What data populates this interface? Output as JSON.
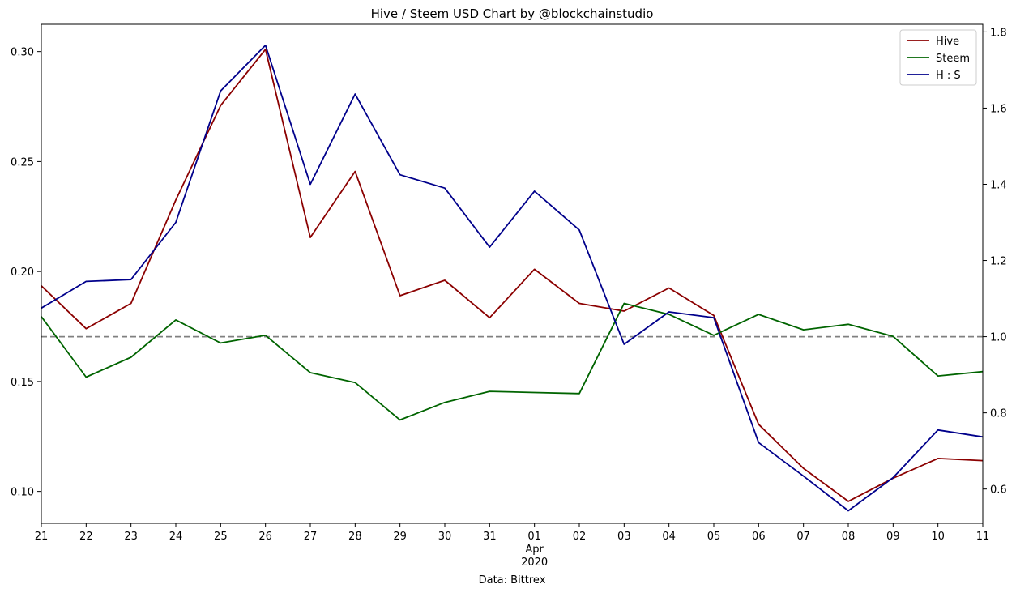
{
  "chart_data": {
    "type": "line",
    "title": "Hive / Steem USD Chart by @blockchainstudio",
    "xlabel": "Data: Bittrex",
    "x": [
      "2020-03-21",
      "2020-03-22",
      "2020-03-23",
      "2020-03-24",
      "2020-03-25",
      "2020-03-26",
      "2020-03-27",
      "2020-03-28",
      "2020-03-29",
      "2020-03-30",
      "2020-03-31",
      "2020-04-01",
      "2020-04-02",
      "2020-04-03",
      "2020-04-04",
      "2020-04-05",
      "2020-04-06",
      "2020-04-07",
      "2020-04-08",
      "2020-04-09",
      "2020-04-10",
      "2020-04-11"
    ],
    "x_tick_labels": [
      "21",
      "22",
      "23",
      "24",
      "25",
      "26",
      "27",
      "28",
      "29",
      "30",
      "31",
      "01",
      "02",
      "03",
      "04",
      "05",
      "06",
      "07",
      "08",
      "09",
      "10",
      "11"
    ],
    "x_sublabels": {
      "month": "Apr",
      "year": "2020"
    },
    "left_axis": {
      "ylim": [
        0.0855,
        0.3124
      ],
      "ticks": [
        0.1,
        0.15,
        0.2,
        0.25,
        0.3
      ],
      "tick_labels": [
        "0.10",
        "0.15",
        "0.20",
        "0.25",
        "0.30"
      ]
    },
    "right_axis": {
      "ylim": [
        0.51,
        1.82
      ],
      "ticks": [
        0.6,
        0.8,
        1.0,
        1.2,
        1.4,
        1.6,
        1.8
      ],
      "tick_labels": [
        "0.6",
        "0.8",
        "1.0",
        "1.2",
        "1.4",
        "1.6",
        "1.8"
      ]
    },
    "series": [
      {
        "name": "Hive",
        "axis": "left",
        "color": "#8b0000",
        "values": [
          0.1935,
          0.174,
          0.1855,
          0.2325,
          0.2755,
          0.301,
          0.2155,
          0.2455,
          0.189,
          0.196,
          0.179,
          0.201,
          0.1855,
          0.182,
          0.1925,
          0.18,
          0.1305,
          0.1105,
          0.0955,
          0.106,
          0.115,
          0.114
        ]
      },
      {
        "name": "Steem",
        "axis": "left",
        "color": "#006400",
        "values": [
          0.1795,
          0.152,
          0.161,
          0.178,
          0.1675,
          0.171,
          0.154,
          0.1495,
          0.1325,
          0.1405,
          0.1455,
          0.145,
          0.1445,
          0.1855,
          0.1805,
          0.171,
          0.1805,
          0.1735,
          0.176,
          0.1705,
          0.1525,
          0.1545
        ]
      },
      {
        "name": "H : S",
        "axis": "right",
        "color": "#00008b",
        "values": [
          1.075,
          1.145,
          1.15,
          1.3,
          1.645,
          1.765,
          1.4,
          1.637,
          1.425,
          1.39,
          1.235,
          1.382,
          1.28,
          0.98,
          1.065,
          1.05,
          0.722,
          0.634,
          0.543,
          0.63,
          0.755,
          0.737
        ]
      }
    ],
    "reference_line": {
      "axis": "right",
      "value": 1.0,
      "color": "#808080",
      "style": "dashed"
    },
    "legend_position": "top-right",
    "grid": false
  }
}
